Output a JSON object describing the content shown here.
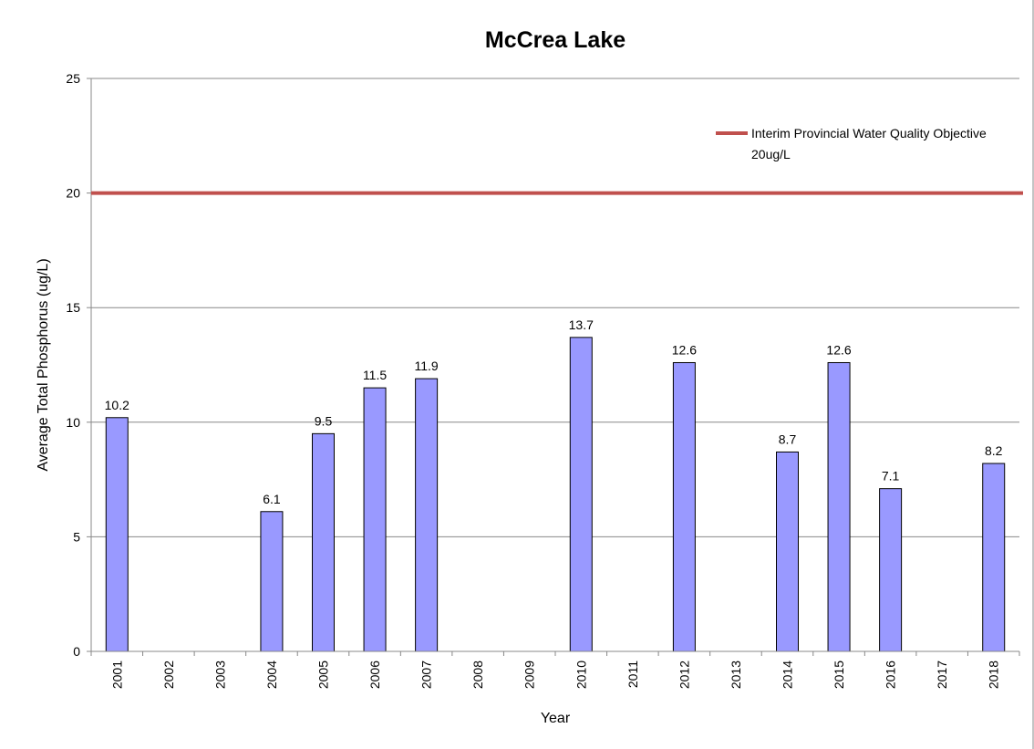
{
  "chart_data": {
    "type": "bar",
    "title": "McCrea Lake",
    "x_label": "Year",
    "y_label": "Average Total Phosphorus (ug/L)",
    "categories": [
      "2001",
      "2002",
      "2003",
      "2004",
      "2005",
      "2006",
      "2007",
      "2008",
      "2009",
      "2010",
      "2011",
      "2012",
      "2013",
      "2014",
      "2015",
      "2016",
      "2017",
      "2018"
    ],
    "values": [
      10.2,
      null,
      null,
      6.1,
      9.5,
      11.5,
      11.9,
      null,
      null,
      13.7,
      null,
      12.6,
      null,
      8.7,
      12.6,
      7.1,
      null,
      8.2
    ],
    "color": "#9999ff",
    "ylim": [
      0,
      25
    ],
    "yticks": [
      0,
      5,
      10,
      15,
      20,
      25
    ],
    "grid": true,
    "reference_lines": [
      {
        "name": "Interim Provincial Water Quality Objective 20ug/L",
        "value": 20,
        "color": "#c0504d"
      }
    ],
    "legend": "upper right"
  }
}
